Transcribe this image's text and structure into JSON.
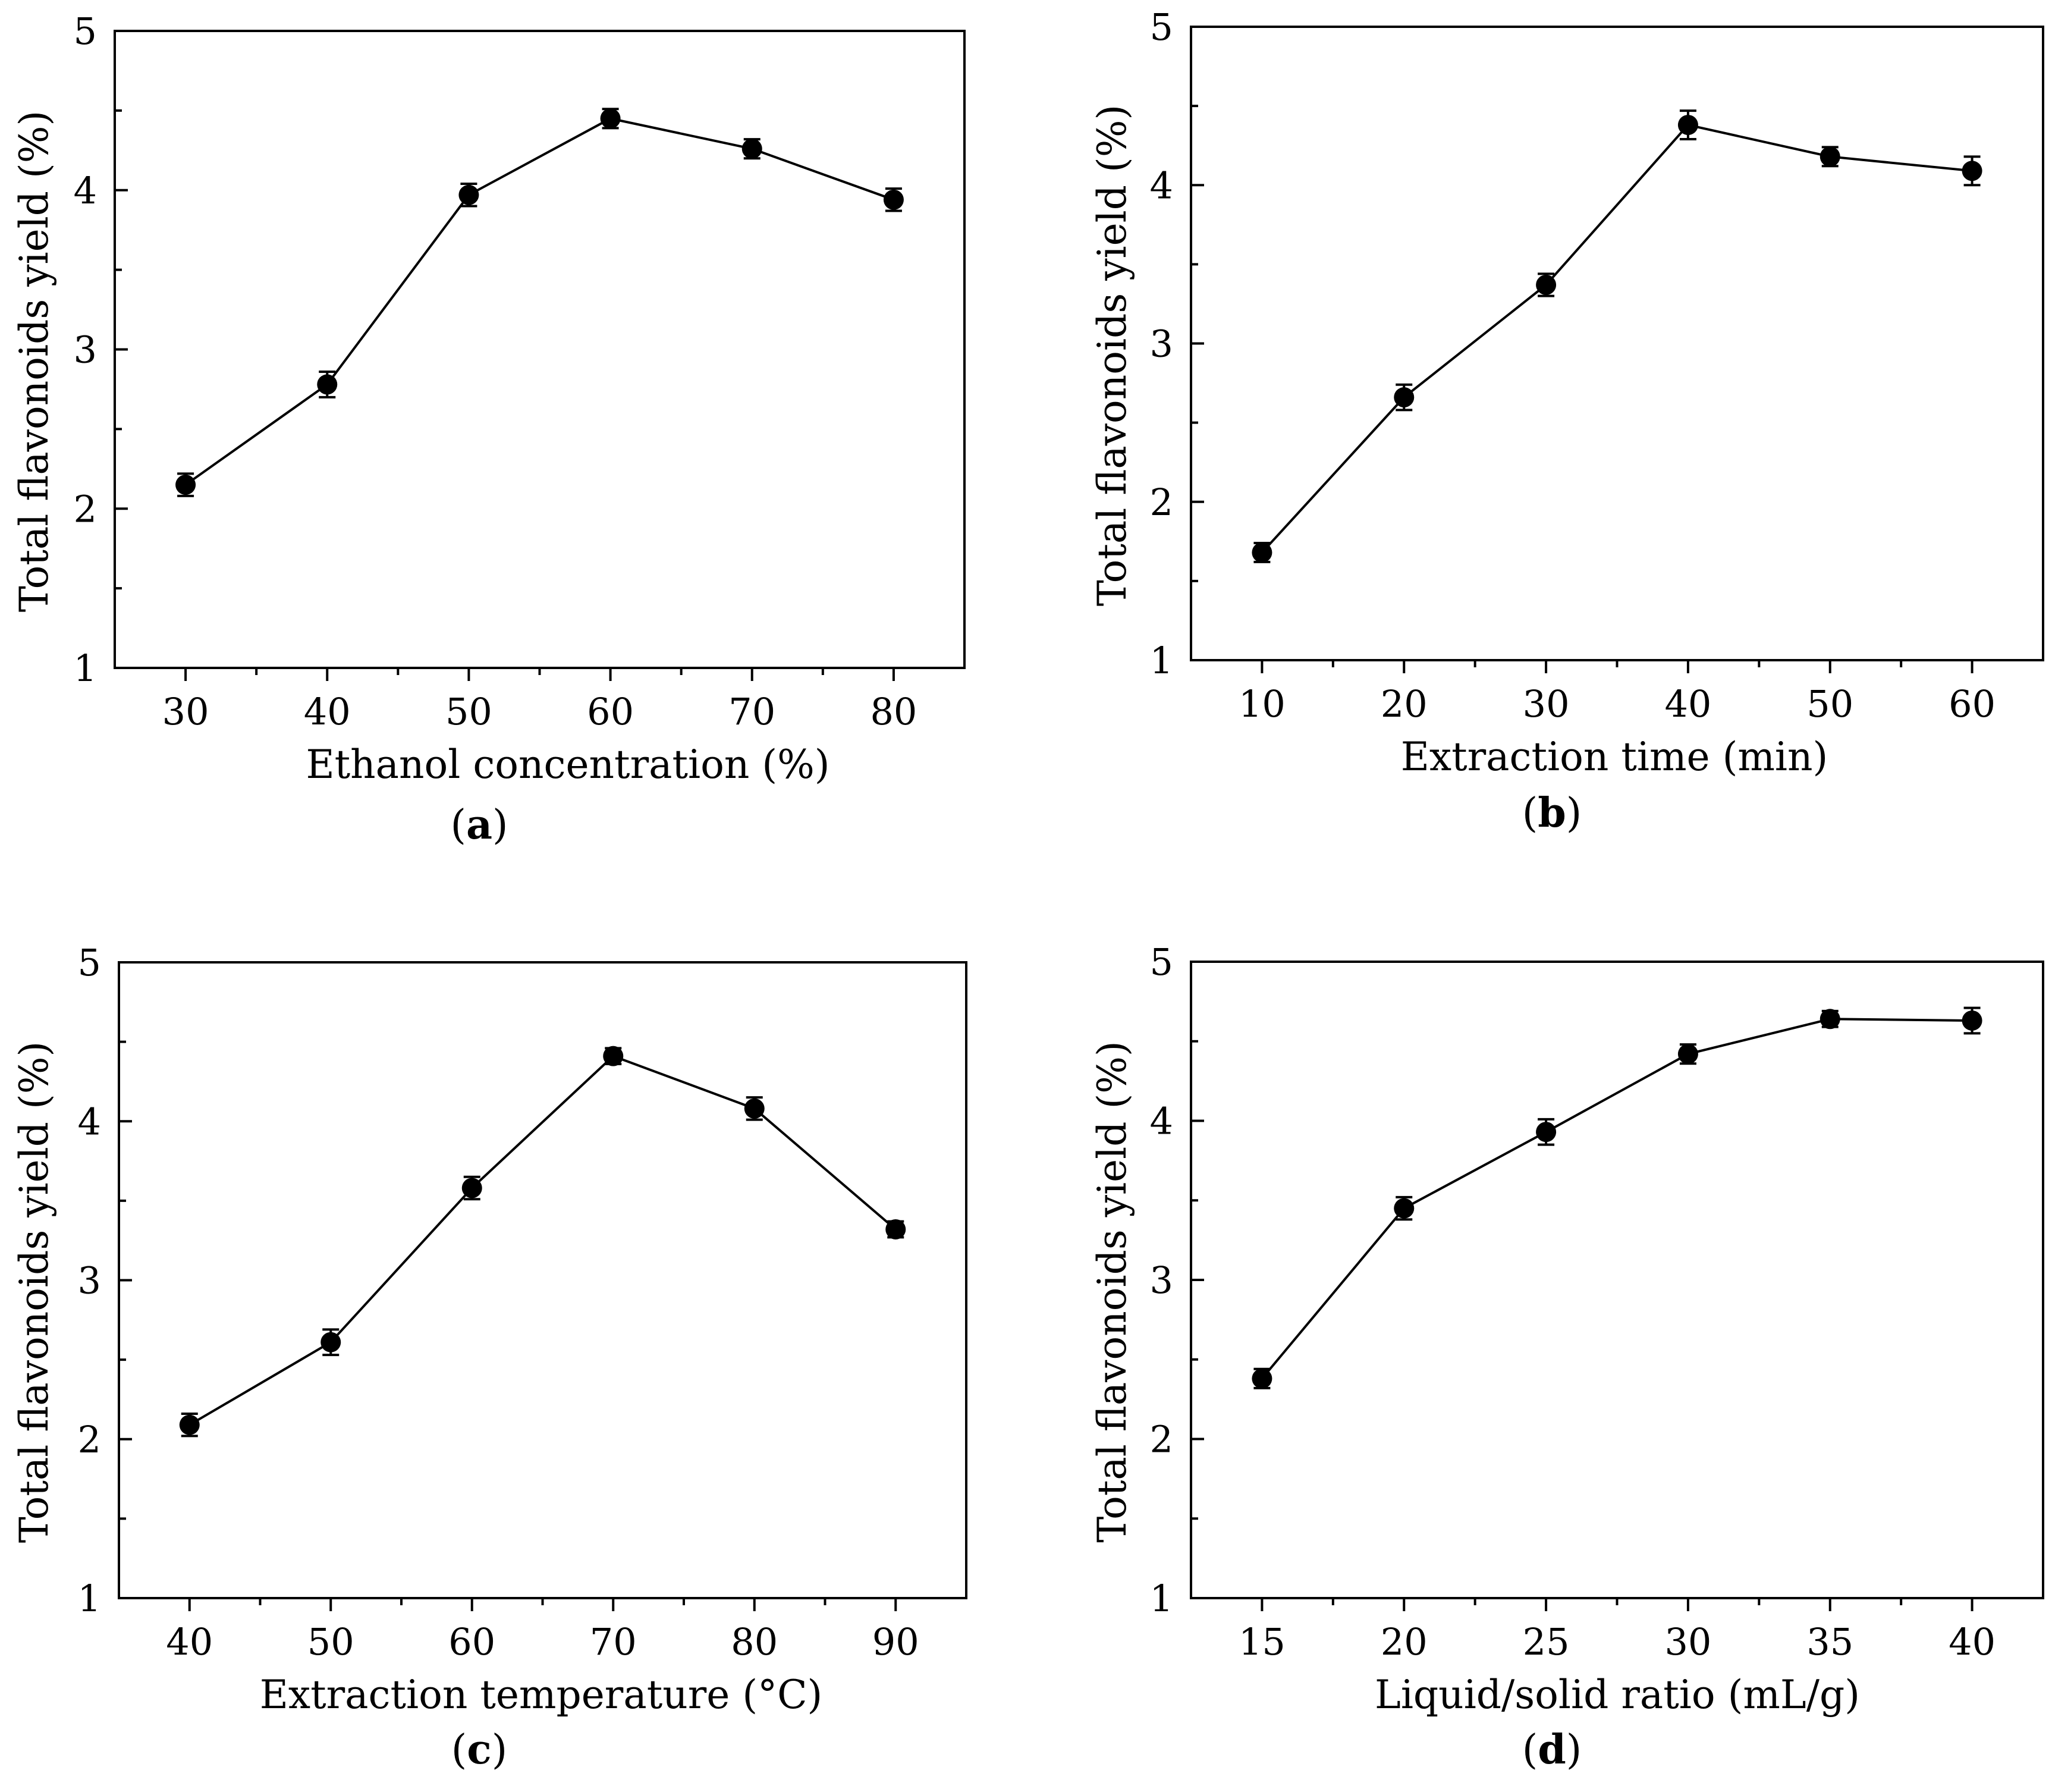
{
  "chart_data": [
    {
      "type": "line",
      "panel_label": "a",
      "xlabel": "Ethanol concentration (%)",
      "ylabel": "Total flavonoids yield (%)",
      "x": [
        30,
        40,
        50,
        60,
        70,
        80
      ],
      "y": [
        2.15,
        2.78,
        3.97,
        4.45,
        4.26,
        3.94
      ],
      "error": [
        0.07,
        0.08,
        0.07,
        0.06,
        0.06,
        0.07
      ],
      "xticks": [
        30,
        40,
        50,
        60,
        70,
        80
      ],
      "yticks": [
        1,
        2,
        3,
        4,
        5
      ],
      "xlim": [
        25,
        85
      ],
      "ylim": [
        1,
        5
      ],
      "grid": false,
      "legend": "none"
    },
    {
      "type": "line",
      "panel_label": "b",
      "xlabel": "Extraction time (min)",
      "ylabel": "Total flavonoids yield (%)",
      "x": [
        10,
        20,
        30,
        40,
        50,
        60
      ],
      "y": [
        1.68,
        2.66,
        3.37,
        4.38,
        4.18,
        4.09
      ],
      "error": [
        0.06,
        0.08,
        0.07,
        0.09,
        0.06,
        0.09
      ],
      "xticks": [
        10,
        20,
        30,
        40,
        50,
        60
      ],
      "yticks": [
        1,
        2,
        3,
        4,
        5
      ],
      "xlim": [
        5,
        65
      ],
      "ylim": [
        1,
        5
      ],
      "grid": false,
      "legend": "none"
    },
    {
      "type": "line",
      "panel_label": "c",
      "xlabel": "Extraction temperature (°C)",
      "ylabel": "Total flavonoids yield (%)",
      "x": [
        40,
        50,
        60,
        70,
        80,
        90
      ],
      "y": [
        2.09,
        2.61,
        3.58,
        4.41,
        4.08,
        3.32
      ],
      "error": [
        0.07,
        0.08,
        0.07,
        0.05,
        0.07,
        0.05
      ],
      "xticks": [
        40,
        50,
        60,
        70,
        80,
        90
      ],
      "yticks": [
        1,
        2,
        3,
        4,
        5
      ],
      "xlim": [
        35,
        95
      ],
      "ylim": [
        1,
        5
      ],
      "grid": false,
      "legend": "none"
    },
    {
      "type": "line",
      "panel_label": "d",
      "xlabel": "Liquid/solid ratio (mL/g)",
      "ylabel": "Total flavonoids yield (%)",
      "x": [
        15,
        20,
        25,
        30,
        35,
        40
      ],
      "y": [
        2.38,
        3.45,
        3.93,
        4.42,
        4.64,
        4.63
      ],
      "error": [
        0.06,
        0.07,
        0.08,
        0.06,
        0.05,
        0.08
      ],
      "xticks": [
        15,
        20,
        25,
        30,
        35,
        40
      ],
      "yticks": [
        1,
        2,
        3,
        4,
        5
      ],
      "xlim": [
        12.5,
        42.5
      ],
      "ylim": [
        1,
        5
      ],
      "grid": false,
      "legend": "none"
    }
  ]
}
